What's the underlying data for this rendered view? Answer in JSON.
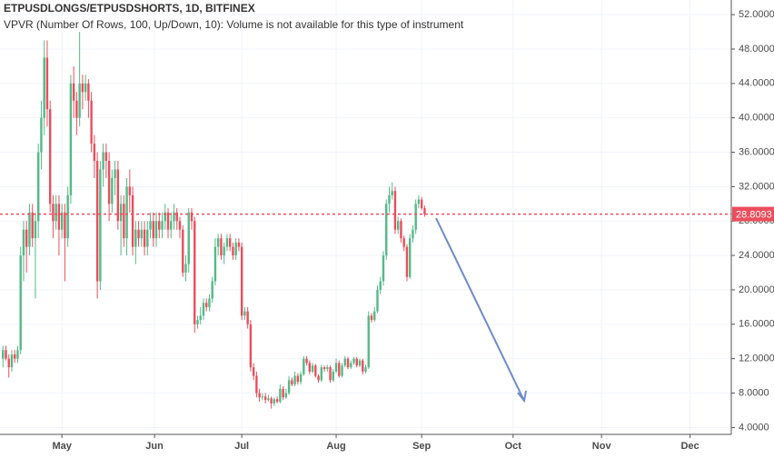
{
  "chart_data": {
    "type": "candlestick",
    "title": "ETPUSDLONGS/ETPUSDSHORTS, 1D, BITFINEX",
    "subtitle": "VPVR (Number Of Rows, 100, Up/Down, 10): Volume is not available for this type of instrument",
    "up_color": "#53b987",
    "down_color": "#eb4d5c",
    "grid": true,
    "xlim": [
      -1,
      247
    ],
    "xticks": [
      {
        "value": 20,
        "label": "May"
      },
      {
        "value": 51.4,
        "label": "Jun"
      },
      {
        "value": 81,
        "label": "Jul"
      },
      {
        "value": 113,
        "label": "Aug"
      },
      {
        "value": 142,
        "label": "Sep"
      },
      {
        "value": 173,
        "label": "Oct"
      },
      {
        "value": 203,
        "label": "Nov"
      },
      {
        "value": 233,
        "label": "Dec"
      }
    ],
    "ylim": [
      3.2,
      53.7
    ],
    "yticks": [
      {
        "value": 4,
        "label": "4.0000"
      },
      {
        "value": 8,
        "label": "8.0000"
      },
      {
        "value": 12,
        "label": "12.0000"
      },
      {
        "value": 16,
        "label": "16.0000"
      },
      {
        "value": 20,
        "label": "20.0000"
      },
      {
        "value": 24,
        "label": "24.0000"
      },
      {
        "value": 28,
        "label": "28.0000"
      },
      {
        "value": 32,
        "label": "32.0000"
      },
      {
        "value": 36,
        "label": "36.0000"
      },
      {
        "value": 40,
        "label": "40.0000"
      },
      {
        "value": 44,
        "label": "44.0000"
      },
      {
        "value": 48,
        "label": "48.0000"
      },
      {
        "value": 52,
        "label": "52.0000"
      }
    ],
    "candles": [
      [
        12,
        13.5,
        11,
        13
      ],
      [
        13,
        13.5,
        11.8,
        12
      ],
      [
        12,
        12.5,
        9.8,
        11
      ],
      [
        11,
        13,
        10.5,
        12.5
      ],
      [
        12.5,
        13,
        11.5,
        12
      ],
      [
        12,
        13.5,
        11.5,
        13
      ],
      [
        13,
        25,
        12.5,
        24
      ],
      [
        24,
        28,
        21,
        27
      ],
      [
        27,
        28,
        22,
        25
      ],
      [
        25,
        30,
        24,
        29
      ],
      [
        29,
        30,
        25,
        26
      ],
      [
        26,
        29,
        19,
        28
      ],
      [
        28,
        37,
        26,
        36
      ],
      [
        36,
        42,
        34,
        40
      ],
      [
        40,
        49,
        38,
        47
      ],
      [
        47,
        49,
        39,
        41
      ],
      [
        41,
        42,
        29,
        30
      ],
      [
        30,
        31,
        26,
        28
      ],
      [
        28,
        31,
        27,
        30
      ],
      [
        30,
        31,
        24,
        27
      ],
      [
        27,
        30,
        26,
        29
      ],
      [
        29,
        30,
        21,
        26
      ],
      [
        26,
        32,
        25,
        31
      ],
      [
        31,
        45,
        30,
        44
      ],
      [
        44,
        46,
        40,
        42
      ],
      [
        42,
        43,
        38,
        40
      ],
      [
        40,
        50,
        39,
        44
      ],
      [
        44,
        45,
        41,
        43
      ],
      [
        43,
        45,
        42,
        44
      ],
      [
        44,
        44.5,
        40,
        42
      ],
      [
        42,
        43,
        36,
        37
      ],
      [
        37,
        38,
        33,
        35
      ],
      [
        35,
        36,
        19,
        21
      ],
      [
        21,
        35,
        20,
        34
      ],
      [
        34,
        37,
        32,
        36
      ],
      [
        36,
        37,
        33,
        35
      ],
      [
        35,
        36,
        28,
        30
      ],
      [
        30,
        34,
        29,
        33
      ],
      [
        33,
        35,
        31,
        34
      ],
      [
        34,
        35,
        27,
        28
      ],
      [
        28,
        31,
        24,
        30
      ],
      [
        30,
        31,
        25,
        26
      ],
      [
        26,
        33,
        24,
        32
      ],
      [
        32,
        34,
        29,
        31
      ],
      [
        31,
        32,
        24,
        25
      ],
      [
        25,
        28,
        23,
        27
      ],
      [
        27,
        28,
        25,
        26
      ],
      [
        26,
        28,
        25,
        27
      ],
      [
        27,
        28,
        24,
        25
      ],
      [
        25,
        28,
        24,
        27
      ],
      [
        27,
        29,
        26,
        28
      ],
      [
        28,
        29,
        25,
        26
      ],
      [
        26,
        29,
        25,
        28
      ],
      [
        28,
        29,
        26,
        27
      ],
      [
        27,
        29,
        26,
        28
      ],
      [
        28,
        30,
        27,
        29
      ],
      [
        29,
        29.5,
        26,
        27
      ],
      [
        27,
        29,
        26,
        28
      ],
      [
        28,
        30,
        27,
        29
      ],
      [
        29,
        29.5,
        27,
        28
      ],
      [
        28,
        28.5,
        26,
        27
      ],
      [
        27,
        27.5,
        21.5,
        22
      ],
      [
        22,
        24,
        21,
        23
      ],
      [
        23,
        29.5,
        22,
        29
      ],
      [
        29,
        29.5,
        27,
        28
      ],
      [
        28,
        28.5,
        15,
        16
      ],
      [
        16,
        17,
        15.5,
        16.5
      ],
      [
        16.5,
        18,
        16,
        17
      ],
      [
        17,
        19,
        16.5,
        18.5
      ],
      [
        18.5,
        19,
        17.5,
        18
      ],
      [
        18,
        19.5,
        17.5,
        19
      ],
      [
        19,
        21.5,
        18.5,
        21
      ],
      [
        21,
        26,
        20.5,
        25
      ],
      [
        25,
        26.5,
        24,
        26
      ],
      [
        26,
        26.5,
        23.5,
        24
      ],
      [
        24,
        25.5,
        23,
        25
      ],
      [
        25,
        26.5,
        24.5,
        26
      ],
      [
        26,
        26.5,
        24.5,
        25
      ],
      [
        25,
        25.5,
        23.5,
        24
      ],
      [
        24,
        26,
        23.5,
        25.5
      ],
      [
        25.5,
        26,
        24.5,
        25
      ],
      [
        25,
        25.5,
        16.5,
        17
      ],
      [
        17,
        18,
        16.5,
        17.5
      ],
      [
        17.5,
        18,
        15.5,
        16
      ],
      [
        16,
        16.5,
        10.5,
        11
      ],
      [
        11,
        11.5,
        9.5,
        10
      ],
      [
        10,
        10.5,
        7.5,
        8
      ],
      [
        8,
        8.5,
        7,
        7.5
      ],
      [
        7.5,
        8,
        7.2,
        7.6
      ],
      [
        7.6,
        8,
        6.8,
        7.2
      ],
      [
        7.2,
        7.8,
        7,
        7.4
      ],
      [
        7.4,
        7.6,
        6.2,
        6.8
      ],
      [
        6.8,
        7.5,
        6.5,
        7.3
      ],
      [
        7.3,
        7.6,
        6.8,
        7
      ],
      [
        7,
        9,
        6.8,
        8.5
      ],
      [
        8.5,
        8.8,
        7.2,
        7.5
      ],
      [
        7.5,
        8.5,
        7.3,
        8
      ],
      [
        8,
        10,
        7.8,
        9.5
      ],
      [
        9.5,
        9.8,
        8.8,
        9
      ],
      [
        9,
        10.5,
        8.8,
        10
      ],
      [
        10,
        10.3,
        9,
        9.3
      ],
      [
        9.3,
        10.5,
        9,
        10.2
      ],
      [
        10.2,
        12.3,
        10,
        12
      ],
      [
        12,
        12.3,
        11.2,
        11.5
      ],
      [
        11.5,
        11.8,
        10.2,
        10.5
      ],
      [
        10.5,
        11.5,
        10.3,
        11.2
      ],
      [
        11.2,
        11.4,
        9.8,
        10
      ],
      [
        10,
        10.2,
        9.2,
        9.5
      ],
      [
        9.5,
        11.3,
        9.3,
        11
      ],
      [
        11,
        11.2,
        10.5,
        10.8
      ],
      [
        10.8,
        11.3,
        10.5,
        11
      ],
      [
        11,
        11.2,
        9.2,
        9.5
      ],
      [
        9.5,
        10.8,
        9.3,
        10.5
      ],
      [
        10.5,
        12,
        10.3,
        11.5
      ],
      [
        11.5,
        11.8,
        9.8,
        10
      ],
      [
        10,
        11.5,
        9.8,
        11.2
      ],
      [
        11.2,
        12.3,
        11,
        12
      ],
      [
        12,
        12.2,
        10.8,
        11
      ],
      [
        11,
        11.8,
        10.8,
        11.5
      ],
      [
        11.5,
        12.2,
        11.3,
        12
      ],
      [
        12,
        12.2,
        11,
        11.2
      ],
      [
        11.2,
        12,
        11,
        11.8
      ],
      [
        11.8,
        12,
        10.2,
        10.5
      ],
      [
        10.5,
        11.3,
        10.3,
        11
      ],
      [
        11,
        17.5,
        10.8,
        17
      ],
      [
        17,
        17.3,
        16.2,
        16.5
      ],
      [
        16.5,
        18,
        16.3,
        17.5
      ],
      [
        17.5,
        20.5,
        17.3,
        20
      ],
      [
        20,
        21.5,
        19.5,
        21
      ],
      [
        21,
        24.5,
        20.5,
        24
      ],
      [
        24,
        30.5,
        23.5,
        30
      ],
      [
        30,
        32,
        29,
        31
      ],
      [
        31,
        32.5,
        30.5,
        31.5
      ],
      [
        31.5,
        32,
        26.5,
        27
      ],
      [
        27,
        28.5,
        26.5,
        28
      ],
      [
        28,
        28.3,
        25.5,
        26
      ],
      [
        26,
        26.3,
        24.5,
        25
      ],
      [
        25,
        25.3,
        21,
        21.5
      ],
      [
        21.5,
        26.5,
        21.3,
        26
      ],
      [
        26,
        27.5,
        25.5,
        27
      ],
      [
        27,
        30.5,
        26.5,
        30
      ],
      [
        30,
        31,
        29.5,
        30.5
      ],
      [
        30.5,
        30.8,
        29.3,
        29.5
      ],
      [
        29.5,
        29.8,
        28.5,
        28.8093
      ]
    ]
  }
}
